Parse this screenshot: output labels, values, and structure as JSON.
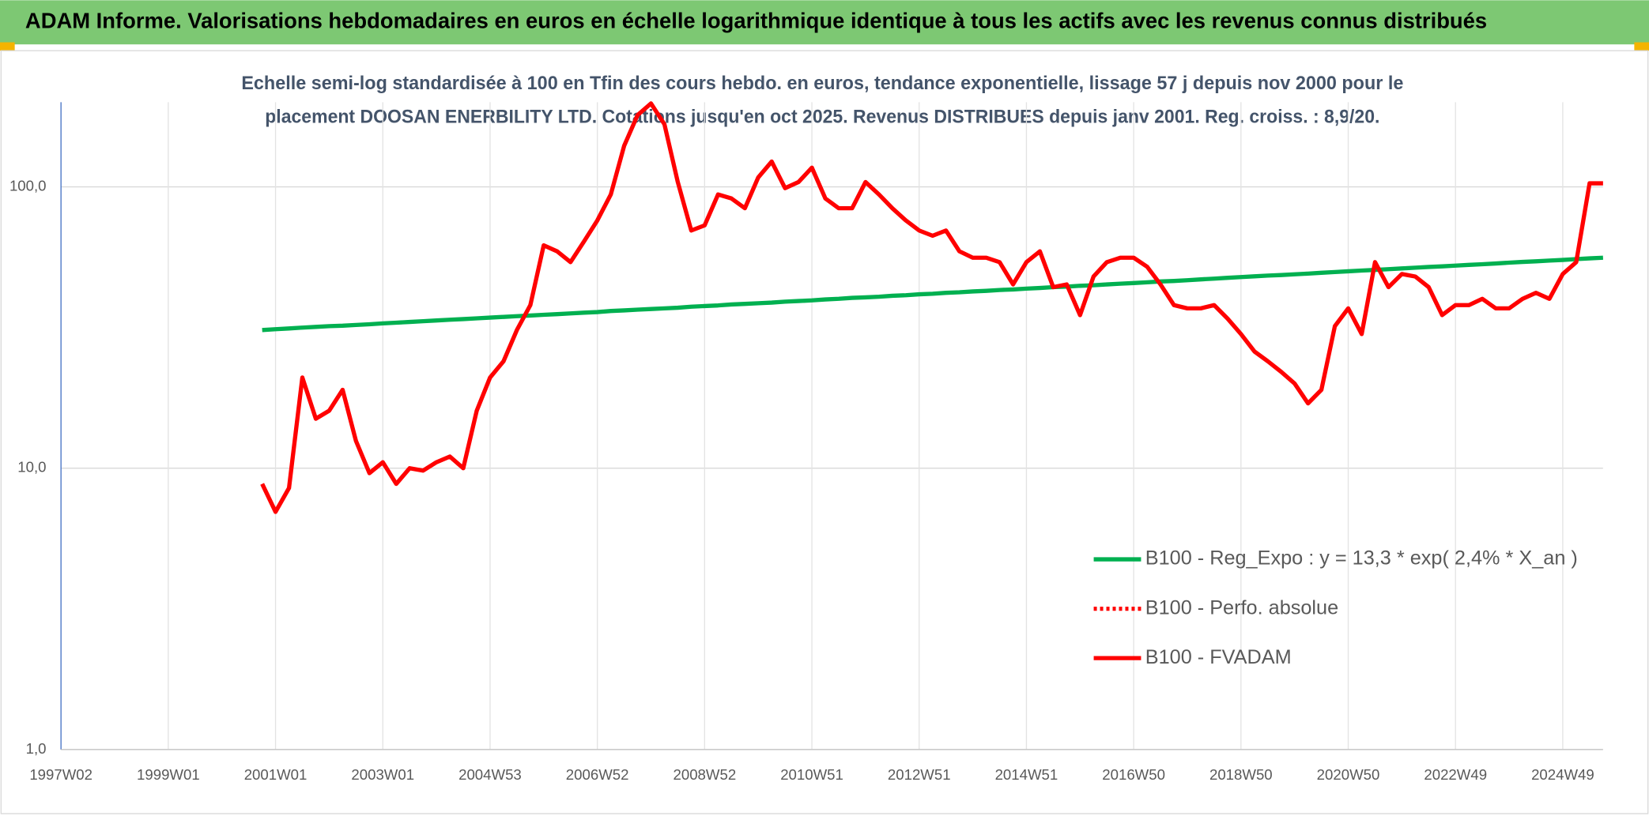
{
  "header": {
    "title": "ADAM Informe. Valorisations hebdomadaires en euros en échelle logarithmique identique à tous les actifs avec les revenus connus distribués"
  },
  "chart_data": {
    "type": "line",
    "title": [
      "Echelle semi-log standardisée à 100 en Tfin des cours hebdo. en euros, tendance exponentielle, lissage 57 j depuis nov 2000 pour le",
      "placement DOOSAN ENERBILITY LTD. Cotations jusqu'en oct 2025. Revenus DISTRIBUES depuis janv 2001. Reg. croiss. : 8,9/20."
    ],
    "log_scale": true,
    "grid": true,
    "legend": "lower right",
    "ylim": [
      1,
      200
    ],
    "yticks": [
      {
        "value": 1,
        "label": "1,0"
      },
      {
        "value": 10,
        "label": "10,0"
      },
      {
        "value": 100,
        "label": "100,0"
      }
    ],
    "categories": [
      "1997W02",
      null,
      null,
      null,
      null,
      null,
      null,
      null,
      "1999W01",
      null,
      null,
      null,
      null,
      null,
      null,
      null,
      "2001W01",
      null,
      null,
      null,
      null,
      null,
      null,
      null,
      "2003W01",
      null,
      null,
      null,
      null,
      null,
      null,
      null,
      "2004W53",
      null,
      null,
      null,
      null,
      null,
      null,
      null,
      "2006W52",
      null,
      null,
      null,
      null,
      null,
      null,
      null,
      "2008W52",
      null,
      null,
      null,
      null,
      null,
      null,
      null,
      "2010W51",
      null,
      null,
      null,
      null,
      null,
      null,
      null,
      "2012W51",
      null,
      null,
      null,
      null,
      null,
      null,
      null,
      "2014W51",
      null,
      null,
      null,
      null,
      null,
      null,
      null,
      "2016W50",
      null,
      null,
      null,
      null,
      null,
      null,
      null,
      "2018W50",
      null,
      null,
      null,
      null,
      null,
      null,
      null,
      "2020W50",
      null,
      null,
      null,
      null,
      null,
      null,
      null,
      "2022W49",
      null,
      null,
      null,
      null,
      null,
      null,
      null,
      "2024W49",
      null,
      null,
      null
    ],
    "series": [
      {
        "name": "B100 - Reg_Expo : y = 13,3 * exp( 2,4% *  X_an )",
        "color": "#00b050",
        "values": [
          null,
          null,
          null,
          null,
          null,
          null,
          null,
          null,
          null,
          null,
          null,
          null,
          null,
          null,
          null,
          31.0,
          31.2,
          31.4,
          31.6,
          31.8,
          32.0,
          32.1,
          32.3,
          32.5,
          32.7,
          32.9,
          33.1,
          33.3,
          33.5,
          33.7,
          33.9,
          34.1,
          34.3,
          34.5,
          34.7,
          34.9,
          35.1,
          35.3,
          35.5,
          35.7,
          35.9,
          36.2,
          36.4,
          36.6,
          36.8,
          37.0,
          37.2,
          37.5,
          37.7,
          37.9,
          38.2,
          38.4,
          38.6,
          38.8,
          39.1,
          39.3,
          39.5,
          39.8,
          40.0,
          40.3,
          40.5,
          40.7,
          41.0,
          41.2,
          41.5,
          41.7,
          42.0,
          42.2,
          42.5,
          42.7,
          43.0,
          43.2,
          43.5,
          43.7,
          44.0,
          44.2,
          44.5,
          44.7,
          45.0,
          45.3,
          45.5,
          45.8,
          46.1,
          46.3,
          46.6,
          46.9,
          47.2,
          47.5,
          47.8,
          48.1,
          48.4,
          48.6,
          48.9,
          49.2,
          49.5,
          49.8,
          50.1,
          50.4,
          50.7,
          51.0,
          51.3,
          51.6,
          51.9,
          52.2,
          52.5,
          52.8,
          53.1,
          53.4,
          53.8,
          54.1,
          54.4,
          54.7,
          55.0,
          55.4,
          55.7,
          56.0
        ]
      },
      {
        "name": "B100 - Perfo. absolue",
        "color": "#ff0000",
        "dash": "dotted"
      },
      {
        "name": "B100 - FVADAM",
        "color": "#ff0000",
        "values": [
          null,
          null,
          null,
          null,
          null,
          null,
          null,
          null,
          null,
          null,
          null,
          null,
          null,
          null,
          null,
          8.8,
          7,
          8.5,
          21,
          15,
          16,
          19,
          12.5,
          9.6,
          10.5,
          8.8,
          10,
          9.8,
          10.5,
          11,
          10,
          16,
          21,
          24,
          31,
          38,
          62,
          59,
          54,
          64,
          76,
          94,
          140,
          180,
          198,
          167,
          104,
          70,
          73,
          94,
          91,
          84,
          108,
          123,
          99,
          104,
          117,
          91,
          84,
          84,
          104,
          94,
          84,
          76,
          70,
          67,
          70,
          59,
          56,
          56,
          54,
          45,
          54,
          59,
          44,
          45,
          35,
          48,
          54,
          56,
          56,
          52,
          45,
          38,
          37,
          37,
          38,
          34,
          30,
          26,
          24,
          22,
          20,
          17,
          19,
          32,
          37,
          30,
          54,
          44,
          49,
          48,
          44,
          35,
          38,
          38,
          40,
          37,
          37,
          40,
          42,
          40,
          49,
          54,
          103,
          103
        ]
      }
    ]
  }
}
